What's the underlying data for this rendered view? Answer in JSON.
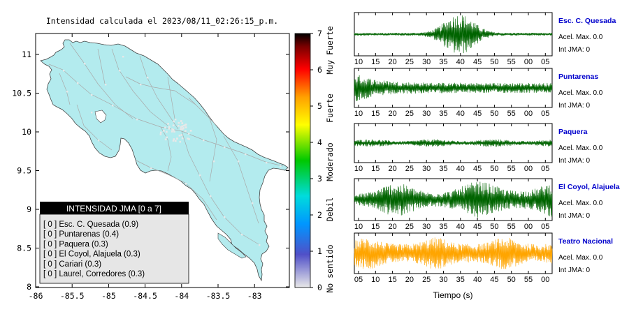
{
  "map": {
    "title": "Intensidad calculada el 2023/08/11_02:26:15_p.m.",
    "y_ticks": [
      "11",
      "10.5",
      "10",
      "9.5",
      "9",
      "8.5",
      "8"
    ],
    "x_ticks": [
      "-86",
      "-85.5",
      "-85",
      "-84.5",
      "-84",
      "-83.5",
      "-83"
    ],
    "legend": {
      "header": "INTENSIDAD JMA [0 a 7]",
      "items": [
        "[ 0 ]  Esc. C. Quesada (0.9)",
        "[ 0 ]  Puntarenas (0.4)",
        "[ 0 ]  Paquera (0.3)",
        "[ 0 ]  El Coyol, Alajuela (0.3)",
        "[ 0 ]  Cariari (0.3)",
        "[ 0 ]  Laurel, Corredores (0.3)"
      ]
    },
    "colors": {
      "land": "#b3ebee",
      "roads": "#a9a9a9",
      "towns": "#e8e8e8",
      "coast": "#444444"
    }
  },
  "colorbar": {
    "ticks": [
      "0",
      "1",
      "2",
      "3",
      "4",
      "5",
      "6",
      "7"
    ],
    "labels": [
      "No sentido",
      "Debil",
      "Moderado",
      "Fuerte",
      "Muy Fuerte"
    ],
    "stops": [
      "#e8e8e8",
      "#5050c8",
      "#0096ff",
      "#00dcdc",
      "#00c800",
      "#ffff00",
      "#ffa000",
      "#ff0000",
      "#780000",
      "#000000"
    ]
  },
  "seismograms": [
    {
      "name": "Esc. C. Quesada",
      "accel": "Acel. Max. 0.0",
      "int": "Int JMA: 0",
      "color": "#006400",
      "ticks": [
        "10",
        "15",
        "20",
        "25",
        "30",
        "35",
        "40",
        "45",
        "50",
        "55",
        "00",
        "05"
      ]
    },
    {
      "name": "Puntarenas",
      "accel": "Acel. Max. 0.0",
      "int": "Int JMA: 0",
      "color": "#006400",
      "ticks": [
        "10",
        "15",
        "20",
        "25",
        "30",
        "35",
        "40",
        "45",
        "50",
        "55",
        "00",
        "05"
      ]
    },
    {
      "name": "Paquera",
      "accel": "Acel. Max. 0.0",
      "int": "Int JMA: 0",
      "color": "#006400",
      "ticks": [
        "10",
        "15",
        "20",
        "25",
        "30",
        "35",
        "40",
        "45",
        "50",
        "55",
        "00",
        "05"
      ]
    },
    {
      "name": "El Coyol, Alajuela",
      "accel": "Acel. Max. 0.0",
      "int": "Int JMA: 0",
      "color": "#006400",
      "ticks": [
        "10",
        "15",
        "20",
        "25",
        "30",
        "35",
        "40",
        "45",
        "50",
        "55",
        "00",
        "05"
      ]
    },
    {
      "name": "Teatro Nacional",
      "accel": "Acel. Max. 0.0",
      "int": "Int JMA: 0",
      "color": "#ffa500",
      "ticks": [
        "05",
        "10",
        "15",
        "20",
        "25",
        "30",
        "35",
        "40",
        "45",
        "50",
        "55",
        "00"
      ]
    }
  ],
  "xlabel": "Tiempo (s)",
  "station_color": "#0000cc"
}
